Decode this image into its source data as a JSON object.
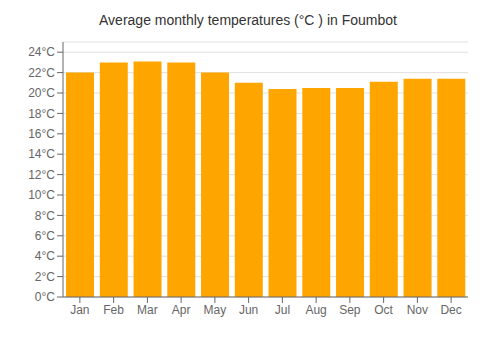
{
  "chart_data": {
    "type": "bar",
    "title": "Average monthly temperatures (°C ) in Foumbot",
    "categories": [
      "Jan",
      "Feb",
      "Mar",
      "Apr",
      "May",
      "Jun",
      "Jul",
      "Aug",
      "Sep",
      "Oct",
      "Nov",
      "Dec"
    ],
    "values": [
      22.0,
      23.0,
      23.1,
      23.0,
      22.0,
      21.0,
      20.4,
      20.5,
      20.5,
      21.1,
      21.4,
      21.4
    ],
    "color": "#FFA500",
    "ylim": [
      0,
      25
    ],
    "yticks": [
      {
        "value": 0,
        "label": "0°C"
      },
      {
        "value": 2,
        "label": "2°C"
      },
      {
        "value": 4,
        "label": "4°C"
      },
      {
        "value": 6,
        "label": "6°C"
      },
      {
        "value": 8,
        "label": "8°C"
      },
      {
        "value": 10,
        "label": "10°C"
      },
      {
        "value": 12,
        "label": "12°C"
      },
      {
        "value": 14,
        "label": "14°C"
      },
      {
        "value": 16,
        "label": "16°C"
      },
      {
        "value": 18,
        "label": "18°C"
      },
      {
        "value": 20,
        "label": "20°C"
      },
      {
        "value": 22,
        "label": "22°C"
      },
      {
        "value": 24,
        "label": "24°C"
      }
    ],
    "grid": true
  }
}
